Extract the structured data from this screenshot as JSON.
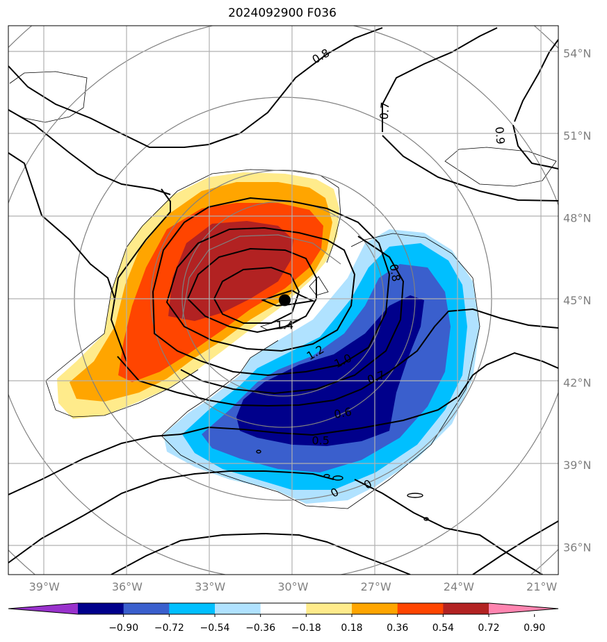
{
  "chart_data": {
    "type": "contour",
    "title": "2024092900 F036",
    "x_ticks": [
      "39°W",
      "36°W",
      "33°W",
      "30°W",
      "27°W",
      "24°W",
      "21°W"
    ],
    "y_ticks": [
      "54°N",
      "51°N",
      "48°N",
      "45°N",
      "42°N",
      "39°N",
      "36°N"
    ],
    "xlim": [
      -40.3,
      -20.4
    ],
    "ylim": [
      35.0,
      55.0
    ],
    "grid": true,
    "center_marker": {
      "lon": -30.3,
      "lat": 45.0
    },
    "contour_labels": [
      {
        "value": "0.8",
        "lon": -29.0,
        "lat": 53.9,
        "angle": -30
      },
      {
        "value": "0.7",
        "lon": -26.7,
        "lat": 51.9,
        "angle": -85
      },
      {
        "value": "0.9",
        "lon": -22.5,
        "lat": 51.0,
        "angle": 85
      },
      {
        "value": "0.8",
        "lon": -26.3,
        "lat": 46.0,
        "angle": 80
      },
      {
        "value": "1.4",
        "lon": -30.3,
        "lat": 44.1,
        "angle": 0
      },
      {
        "value": "1.2",
        "lon": -29.2,
        "lat": 43.1,
        "angle": -30
      },
      {
        "value": "1.0",
        "lon": -28.2,
        "lat": 42.8,
        "angle": -25
      },
      {
        "value": "0.7",
        "lon": -27.0,
        "lat": 42.2,
        "angle": -20
      },
      {
        "value": "0.6",
        "lon": -28.2,
        "lat": 40.9,
        "angle": -10
      },
      {
        "value": "0.5",
        "lon": -29.0,
        "lat": 39.9,
        "angle": 0
      },
      {
        "value": "0",
        "lon": -28.5,
        "lat": 38.0,
        "angle": -30
      },
      {
        "value": "0",
        "lon": -27.3,
        "lat": 38.3,
        "angle": -30
      }
    ],
    "colorbar": {
      "ticks": [
        "−0.90",
        "−0.72",
        "−0.54",
        "−0.36",
        "−0.18",
        "0.18",
        "0.36",
        "0.54",
        "0.72",
        "0.90"
      ],
      "colors": [
        "#9932cc",
        "#00008b",
        "#3a5fcd",
        "#00bfff",
        "#b0e2ff",
        "#ffffff",
        "#ffeb8b",
        "#ffa500",
        "#ff4500",
        "#b22222",
        "#ff85b0"
      ]
    }
  }
}
